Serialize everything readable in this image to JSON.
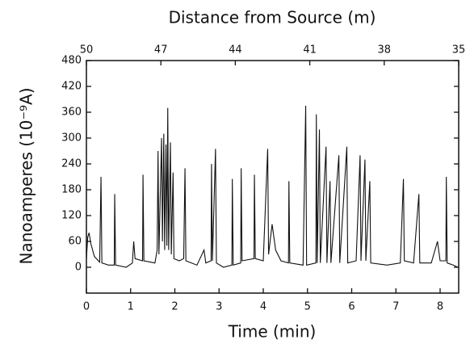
{
  "chart_data": {
    "type": "line",
    "title": "Distance from Source (m)",
    "x_label": "Time (min)",
    "y_label": "Nanoamperes (10⁻⁹A)",
    "color": "#111111",
    "x": [
      0,
      0.03,
      0.06,
      0.1,
      0.18,
      0.3,
      0.33,
      0.35,
      0.5,
      0.63,
      0.64,
      0.66,
      0.9,
      1.04,
      1.07,
      1.1,
      1.27,
      1.28,
      1.3,
      1.55,
      1.6,
      1.62,
      1.64,
      1.7,
      1.72,
      1.75,
      1.77,
      1.8,
      1.82,
      1.84,
      1.86,
      1.9,
      1.92,
      1.96,
      1.98,
      2.1,
      2.2,
      2.23,
      2.25,
      2.5,
      2.66,
      2.7,
      2.82,
      2.83,
      2.85,
      2.92,
      2.94,
      3.1,
      3.29,
      3.3,
      3.32,
      3.49,
      3.5,
      3.52,
      3.79,
      3.8,
      3.82,
      4.0,
      4.1,
      4.12,
      4.2,
      4.28,
      4.4,
      4.57,
      4.58,
      4.6,
      4.9,
      4.96,
      4.98,
      5.19,
      5.2,
      5.22,
      5.27,
      5.29,
      5.42,
      5.44,
      5.51,
      5.53,
      5.71,
      5.73,
      5.89,
      5.91,
      6.1,
      6.19,
      6.21,
      6.3,
      6.32,
      6.41,
      6.43,
      6.8,
      7.1,
      7.17,
      7.19,
      7.4,
      7.52,
      7.54,
      7.8,
      7.94,
      8.0,
      8.13,
      8.14,
      8.16,
      8.3,
      8.4
    ],
    "values": [
      20,
      70,
      80,
      55,
      25,
      12,
      210,
      10,
      5,
      5,
      170,
      5,
      0,
      10,
      60,
      20,
      15,
      215,
      15,
      10,
      40,
      270,
      30,
      300,
      60,
      310,
      40,
      285,
      50,
      370,
      40,
      290,
      30,
      220,
      20,
      15,
      20,
      230,
      15,
      5,
      40,
      10,
      15,
      240,
      15,
      275,
      10,
      0,
      5,
      205,
      5,
      10,
      230,
      15,
      20,
      215,
      20,
      15,
      275,
      30,
      100,
      40,
      15,
      10,
      200,
      10,
      5,
      375,
      5,
      10,
      355,
      10,
      320,
      10,
      280,
      10,
      200,
      10,
      260,
      10,
      280,
      10,
      15,
      260,
      15,
      250,
      15,
      200,
      10,
      5,
      10,
      205,
      15,
      10,
      170,
      10,
      10,
      60,
      15,
      15,
      210,
      10,
      5,
      0
    ],
    "xlim": [
      0,
      8.42
    ],
    "xticks": [
      0,
      1,
      2,
      3,
      4,
      5,
      6,
      7,
      8
    ],
    "ylim": [
      -60,
      480
    ],
    "yticks": [
      0,
      60,
      120,
      180,
      240,
      300,
      360,
      420,
      480
    ],
    "x2lim": [
      50,
      35
    ],
    "x2ticks": [
      50,
      47,
      44,
      41,
      38,
      35
    ]
  }
}
